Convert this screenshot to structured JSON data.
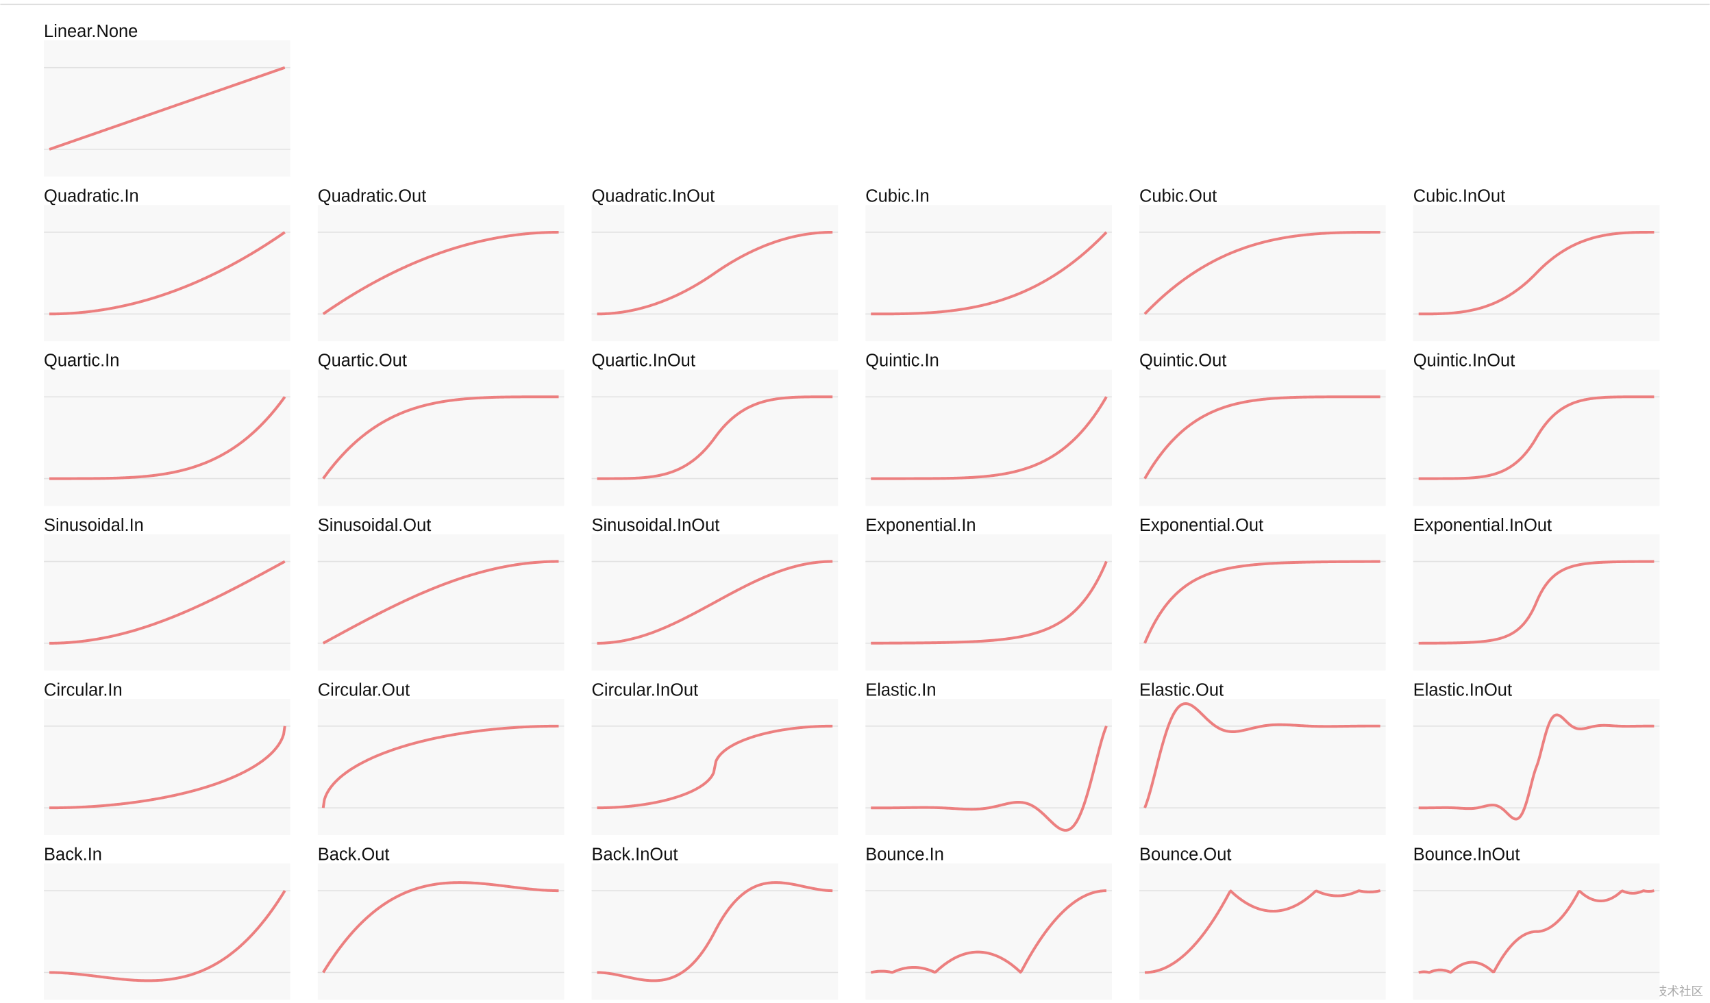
{
  "panels": [
    {
      "label": "Linear.None"
    },
    {
      "label": "Quadratic.In"
    },
    {
      "label": "Quadratic.Out"
    },
    {
      "label": "Quadratic.InOut"
    },
    {
      "label": "Cubic.In"
    },
    {
      "label": "Cubic.Out"
    },
    {
      "label": "Cubic.InOut"
    },
    {
      "label": "Quartic.In"
    },
    {
      "label": "Quartic.Out"
    },
    {
      "label": "Quartic.InOut"
    },
    {
      "label": "Quintic.In"
    },
    {
      "label": "Quintic.Out"
    },
    {
      "label": "Quintic.InOut"
    },
    {
      "label": "Sinusoidal.In"
    },
    {
      "label": "Sinusoidal.Out"
    },
    {
      "label": "Sinusoidal.InOut"
    },
    {
      "label": "Exponential.In"
    },
    {
      "label": "Exponential.Out"
    },
    {
      "label": "Exponential.InOut"
    },
    {
      "label": "Circular.In"
    },
    {
      "label": "Circular.Out"
    },
    {
      "label": "Circular.InOut"
    },
    {
      "label": "Elastic.In"
    },
    {
      "label": "Elastic.Out"
    },
    {
      "label": "Elastic.InOut"
    },
    {
      "label": "Back.In"
    },
    {
      "label": "Back.Out"
    },
    {
      "label": "Back.InOut"
    },
    {
      "label": "Bounce.In"
    },
    {
      "label": "Bounce.Out"
    },
    {
      "label": "Bounce.InOut"
    }
  ],
  "watermark": "@稀土掘金技术社区"
}
